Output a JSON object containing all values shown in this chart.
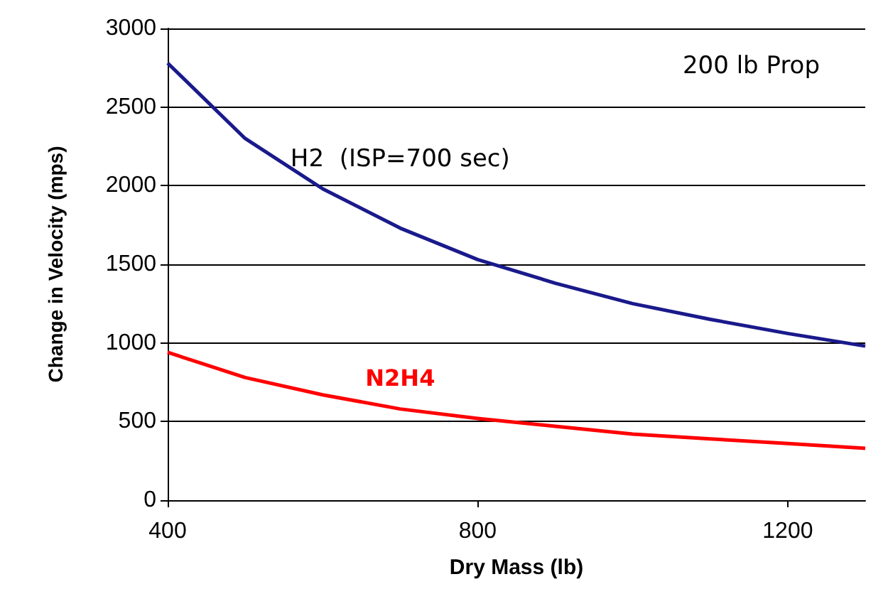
{
  "chart_data": {
    "type": "line",
    "xlabel": "Dry Mass (lb)",
    "ylabel": "Change in Velocity (mps)",
    "annotations": [
      "200 lb Prop"
    ],
    "x": [
      400,
      500,
      600,
      700,
      800,
      900,
      1000,
      1100,
      1200,
      1300
    ],
    "series": [
      {
        "name": "H2  (ISP=700 sec)",
        "color": "#1a1a8c",
        "values": [
          2780,
          2300,
          1980,
          1730,
          1530,
          1380,
          1250,
          1150,
          1060,
          980
        ]
      },
      {
        "name": "N2H4",
        "color": "#ff0000",
        "values": [
          940,
          780,
          670,
          580,
          520,
          470,
          420,
          390,
          360,
          330
        ]
      }
    ],
    "xlim": [
      400,
      1300
    ],
    "xticks": [
      400,
      800,
      1200
    ],
    "ylim": [
      0,
      3000
    ],
    "yticks": [
      0,
      500,
      1000,
      1500,
      2000,
      2500,
      3000
    ],
    "grid": "y",
    "legend": false,
    "marker": "none",
    "line_style": "solid"
  }
}
